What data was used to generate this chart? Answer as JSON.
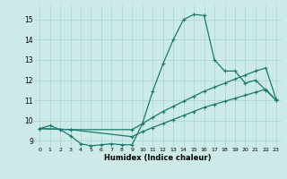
{
  "xlabel": "Humidex (Indice chaleur)",
  "background_color": "#cceae7",
  "grid_color": "#aad4d0",
  "line_color": "#1a7a6e",
  "xlim": [
    -0.5,
    23.5
  ],
  "ylim": [
    8.7,
    15.7
  ],
  "yticks": [
    9,
    10,
    11,
    12,
    13,
    14,
    15
  ],
  "xticks": [
    0,
    1,
    2,
    3,
    4,
    5,
    6,
    7,
    8,
    9,
    10,
    11,
    12,
    13,
    14,
    15,
    16,
    17,
    18,
    19,
    20,
    21,
    22,
    23
  ],
  "line1_x": [
    0,
    1,
    2,
    3,
    4,
    5,
    6,
    7,
    8,
    9,
    10,
    11,
    12,
    13,
    14,
    15,
    16,
    17,
    18,
    19,
    20,
    21,
    22,
    23
  ],
  "line1_y": [
    9.6,
    9.75,
    9.55,
    9.25,
    8.85,
    8.75,
    8.8,
    8.85,
    8.8,
    8.8,
    9.85,
    11.45,
    12.8,
    14.0,
    15.0,
    15.25,
    15.2,
    13.0,
    12.45,
    12.45,
    11.85,
    12.0,
    11.5,
    11.0
  ],
  "line2_x": [
    0,
    3,
    9,
    10,
    11,
    12,
    13,
    14,
    15,
    16,
    17,
    18,
    19,
    20,
    21,
    22,
    23
  ],
  "line2_y": [
    9.6,
    9.55,
    9.55,
    9.85,
    10.15,
    10.45,
    10.7,
    10.95,
    11.2,
    11.45,
    11.65,
    11.85,
    12.05,
    12.25,
    12.45,
    12.6,
    11.05
  ],
  "line3_x": [
    0,
    3,
    9,
    10,
    11,
    12,
    13,
    14,
    15,
    16,
    17,
    18,
    19,
    20,
    21,
    22,
    23
  ],
  "line3_y": [
    9.6,
    9.55,
    9.2,
    9.45,
    9.65,
    9.85,
    10.05,
    10.25,
    10.45,
    10.65,
    10.8,
    10.95,
    11.1,
    11.25,
    11.4,
    11.55,
    11.0
  ]
}
